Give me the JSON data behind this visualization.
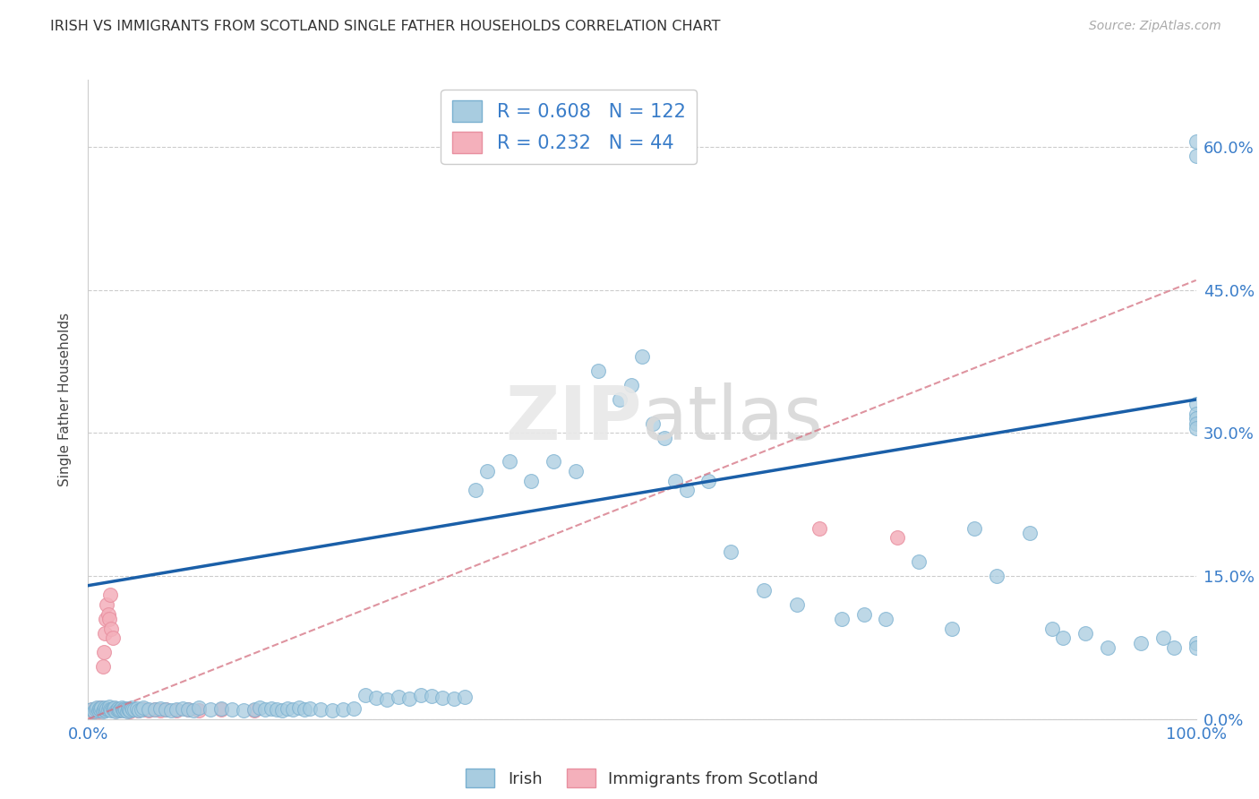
{
  "title": "IRISH VS IMMIGRANTS FROM SCOTLAND SINGLE FATHER HOUSEHOLDS CORRELATION CHART",
  "source": "Source: ZipAtlas.com",
  "ylabel": "Single Father Households",
  "ytick_values": [
    0.0,
    0.15,
    0.3,
    0.45,
    0.6
  ],
  "ytick_labels": [
    "0.0%",
    "15.0%",
    "30.0%",
    "45.0%",
    "60.0%"
  ],
  "xlim": [
    0.0,
    1.0
  ],
  "ylim": [
    0.0,
    0.67
  ],
  "legend_irish_R": "0.608",
  "legend_irish_N": "122",
  "legend_scot_R": "0.232",
  "legend_scot_N": "44",
  "irish_face_color": "#a8cce0",
  "irish_edge_color": "#7ab0d0",
  "scottish_face_color": "#f4b0bb",
  "scottish_edge_color": "#e890a0",
  "irish_line_color": "#1a5fa8",
  "scottish_line_color": "#d47080",
  "background_color": "#ffffff",
  "grid_color": "#cccccc",
  "title_color": "#333333",
  "axis_label_color": "#3a7dc9",
  "irish_trend_y0": 0.14,
  "irish_trend_y1": 0.335,
  "scottish_trend_y0": 0.0,
  "scottish_trend_y1": 0.46,
  "irish_x": [
    0.003,
    0.005,
    0.007,
    0.008,
    0.009,
    0.01,
    0.011,
    0.012,
    0.013,
    0.014,
    0.015,
    0.016,
    0.017,
    0.018,
    0.019,
    0.02,
    0.021,
    0.022,
    0.023,
    0.024,
    0.025,
    0.026,
    0.027,
    0.028,
    0.029,
    0.03,
    0.031,
    0.032,
    0.033,
    0.034,
    0.035,
    0.036,
    0.037,
    0.038,
    0.039,
    0.04,
    0.042,
    0.044,
    0.046,
    0.048,
    0.05,
    0.055,
    0.06,
    0.065,
    0.07,
    0.075,
    0.08,
    0.085,
    0.09,
    0.095,
    0.1,
    0.11,
    0.12,
    0.13,
    0.14,
    0.15,
    0.155,
    0.16,
    0.165,
    0.17,
    0.175,
    0.18,
    0.185,
    0.19,
    0.195,
    0.2,
    0.21,
    0.22,
    0.23,
    0.24,
    0.25,
    0.26,
    0.27,
    0.28,
    0.29,
    0.3,
    0.31,
    0.32,
    0.33,
    0.34,
    0.35,
    0.36,
    0.38,
    0.4,
    0.42,
    0.44,
    0.46,
    0.48,
    0.49,
    0.5,
    0.51,
    0.52,
    0.53,
    0.54,
    0.56,
    0.58,
    0.61,
    0.64,
    0.68,
    0.7,
    0.72,
    0.75,
    0.78,
    0.8,
    0.82,
    0.85,
    0.87,
    0.88,
    0.9,
    0.92,
    0.95,
    0.97,
    0.98,
    1.0,
    1.0,
    1.0,
    1.0,
    1.0,
    1.0,
    1.0,
    1.0,
    1.0
  ],
  "irish_y": [
    0.01,
    0.008,
    0.01,
    0.012,
    0.009,
    0.011,
    0.01,
    0.012,
    0.008,
    0.01,
    0.012,
    0.009,
    0.011,
    0.01,
    0.013,
    0.01,
    0.009,
    0.011,
    0.01,
    0.012,
    0.008,
    0.01,
    0.011,
    0.009,
    0.01,
    0.012,
    0.01,
    0.009,
    0.011,
    0.01,
    0.008,
    0.011,
    0.01,
    0.009,
    0.012,
    0.01,
    0.01,
    0.011,
    0.009,
    0.01,
    0.012,
    0.01,
    0.01,
    0.011,
    0.01,
    0.009,
    0.01,
    0.011,
    0.01,
    0.009,
    0.012,
    0.01,
    0.011,
    0.01,
    0.009,
    0.01,
    0.012,
    0.01,
    0.011,
    0.01,
    0.009,
    0.011,
    0.01,
    0.012,
    0.01,
    0.011,
    0.01,
    0.009,
    0.01,
    0.011,
    0.025,
    0.022,
    0.02,
    0.023,
    0.021,
    0.025,
    0.024,
    0.022,
    0.021,
    0.023,
    0.24,
    0.26,
    0.27,
    0.25,
    0.27,
    0.26,
    0.365,
    0.335,
    0.35,
    0.38,
    0.31,
    0.295,
    0.25,
    0.24,
    0.25,
    0.175,
    0.135,
    0.12,
    0.105,
    0.11,
    0.105,
    0.165,
    0.095,
    0.2,
    0.15,
    0.195,
    0.095,
    0.085,
    0.09,
    0.075,
    0.08,
    0.085,
    0.075,
    0.33,
    0.32,
    0.315,
    0.31,
    0.305,
    0.08,
    0.075,
    0.605,
    0.59
  ],
  "scot_x": [
    0.003,
    0.004,
    0.005,
    0.006,
    0.007,
    0.008,
    0.009,
    0.01,
    0.011,
    0.012,
    0.013,
    0.014,
    0.015,
    0.016,
    0.017,
    0.018,
    0.019,
    0.02,
    0.021,
    0.022,
    0.023,
    0.024,
    0.025,
    0.026,
    0.028,
    0.03,
    0.032,
    0.034,
    0.036,
    0.038,
    0.04,
    0.045,
    0.05,
    0.055,
    0.06,
    0.065,
    0.07,
    0.08,
    0.09,
    0.1,
    0.12,
    0.15,
    0.66,
    0.73
  ],
  "scot_y": [
    0.008,
    0.01,
    0.008,
    0.01,
    0.009,
    0.011,
    0.008,
    0.01,
    0.012,
    0.009,
    0.055,
    0.07,
    0.09,
    0.105,
    0.12,
    0.11,
    0.105,
    0.13,
    0.095,
    0.085,
    0.01,
    0.011,
    0.009,
    0.01,
    0.009,
    0.01,
    0.01,
    0.009,
    0.01,
    0.008,
    0.01,
    0.009,
    0.01,
    0.009,
    0.01,
    0.009,
    0.01,
    0.009,
    0.01,
    0.009,
    0.01,
    0.009,
    0.2,
    0.19
  ]
}
